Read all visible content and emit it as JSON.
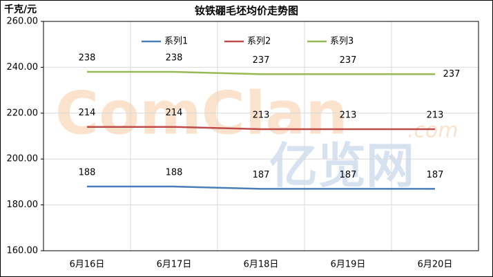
{
  "chart_data": {
    "type": "line",
    "title": "钕铁硼毛坯均价走势图",
    "y_unit": "千克/元",
    "categories": [
      "6月16日",
      "6月17日",
      "6月18日",
      "6月19日",
      "6月20日"
    ],
    "series": [
      {
        "name": "系列1",
        "color": "#4a7ebb",
        "values": [
          188,
          188,
          187,
          187,
          187
        ]
      },
      {
        "name": "系列2",
        "color": "#be4b48",
        "values": [
          214,
          214,
          213,
          213,
          213
        ]
      },
      {
        "name": "系列3",
        "color": "#98b954",
        "values": [
          238,
          238,
          237,
          237,
          237
        ]
      }
    ],
    "ylim": [
      160,
      260
    ],
    "yticks": [
      {
        "value": 160,
        "label": "160.00"
      },
      {
        "value": 180,
        "label": "180.00"
      },
      {
        "value": 200,
        "label": "200.00"
      },
      {
        "value": 220,
        "label": "220.00"
      },
      {
        "value": 240,
        "label": "240.00"
      },
      {
        "value": 260,
        "label": "260.00"
      }
    ],
    "grid": true,
    "legend": "top",
    "data_labels": true,
    "watermark": {
      "brand": "ComClan",
      "domain": ".com",
      "cn": "亿览网"
    }
  }
}
